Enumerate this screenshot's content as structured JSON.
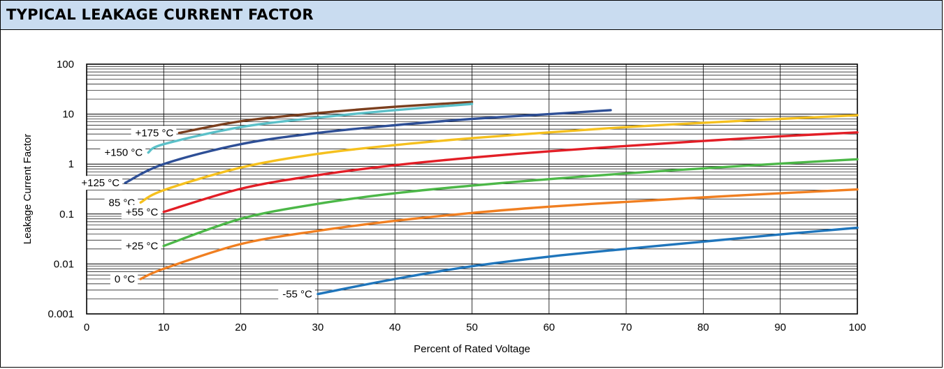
{
  "header": {
    "title": "TYPICAL LEAKAGE CURRENT FACTOR"
  },
  "chart_data": {
    "type": "line",
    "title": "TYPICAL LEAKAGE CURRENT FACTOR",
    "xlabel": "Percent of Rated Voltage",
    "ylabel": "Leakage Current Factor",
    "xlim": [
      0,
      100
    ],
    "ylim": [
      0.001,
      100
    ],
    "yscale": "log",
    "grid": true,
    "x_ticks": [
      "0",
      "10",
      "20",
      "30",
      "40",
      "50",
      "60",
      "70",
      "80",
      "90",
      "100"
    ],
    "y_ticks": [
      "0.001",
      "0.01",
      "0.1",
      "1",
      "10",
      "100"
    ],
    "series": [
      {
        "name": "+175 °C",
        "color": "#7b3f1e",
        "points": [
          [
            12,
            4.2
          ],
          [
            20,
            7.2
          ],
          [
            30,
            10.5
          ],
          [
            40,
            14.0
          ],
          [
            50,
            17.5
          ]
        ]
      },
      {
        "name": "+150 °C",
        "color": "#5bc0c8",
        "points": [
          [
            8,
            1.7
          ],
          [
            10,
            2.5
          ],
          [
            20,
            5.5
          ],
          [
            30,
            8.5
          ],
          [
            40,
            12.0
          ],
          [
            50,
            16.0
          ]
        ]
      },
      {
        "name": "+125 °C",
        "color": "#2e4f96",
        "points": [
          [
            5,
            0.42
          ],
          [
            10,
            1.0
          ],
          [
            20,
            2.5
          ],
          [
            30,
            4.2
          ],
          [
            40,
            6.0
          ],
          [
            50,
            8.0
          ],
          [
            60,
            10.0
          ],
          [
            68,
            12.0
          ]
        ]
      },
      {
        "name": "85 °C",
        "color": "#f5c01e",
        "points": [
          [
            7,
            0.17
          ],
          [
            10,
            0.3
          ],
          [
            20,
            0.85
          ],
          [
            30,
            1.6
          ],
          [
            40,
            2.4
          ],
          [
            50,
            3.3
          ],
          [
            60,
            4.3
          ],
          [
            70,
            5.5
          ],
          [
            80,
            6.7
          ],
          [
            90,
            8.0
          ],
          [
            100,
            9.5
          ]
        ]
      },
      {
        "name": "+55 °C",
        "color": "#e21e26",
        "points": [
          [
            10,
            0.11
          ],
          [
            20,
            0.32
          ],
          [
            30,
            0.6
          ],
          [
            40,
            0.95
          ],
          [
            50,
            1.35
          ],
          [
            60,
            1.8
          ],
          [
            70,
            2.3
          ],
          [
            80,
            2.9
          ],
          [
            90,
            3.6
          ],
          [
            100,
            4.3
          ]
        ]
      },
      {
        "name": "+25 °C",
        "color": "#4cb748",
        "points": [
          [
            10,
            0.023
          ],
          [
            20,
            0.08
          ],
          [
            30,
            0.16
          ],
          [
            40,
            0.26
          ],
          [
            50,
            0.37
          ],
          [
            60,
            0.5
          ],
          [
            70,
            0.65
          ],
          [
            80,
            0.82
          ],
          [
            90,
            1.02
          ],
          [
            100,
            1.25
          ]
        ]
      },
      {
        "name": "0 °C",
        "color": "#f07f21",
        "points": [
          [
            7,
            0.005
          ],
          [
            10,
            0.008
          ],
          [
            20,
            0.025
          ],
          [
            30,
            0.046
          ],
          [
            40,
            0.073
          ],
          [
            50,
            0.105
          ],
          [
            60,
            0.14
          ],
          [
            70,
            0.175
          ],
          [
            80,
            0.215
          ],
          [
            90,
            0.26
          ],
          [
            100,
            0.31
          ]
        ]
      },
      {
        "name": "-55 °C",
        "color": "#1f75bb",
        "points": [
          [
            30,
            0.0025
          ],
          [
            40,
            0.005
          ],
          [
            50,
            0.009
          ],
          [
            60,
            0.014
          ],
          [
            70,
            0.02
          ],
          [
            80,
            0.028
          ],
          [
            90,
            0.039
          ],
          [
            100,
            0.053
          ]
        ]
      }
    ]
  }
}
